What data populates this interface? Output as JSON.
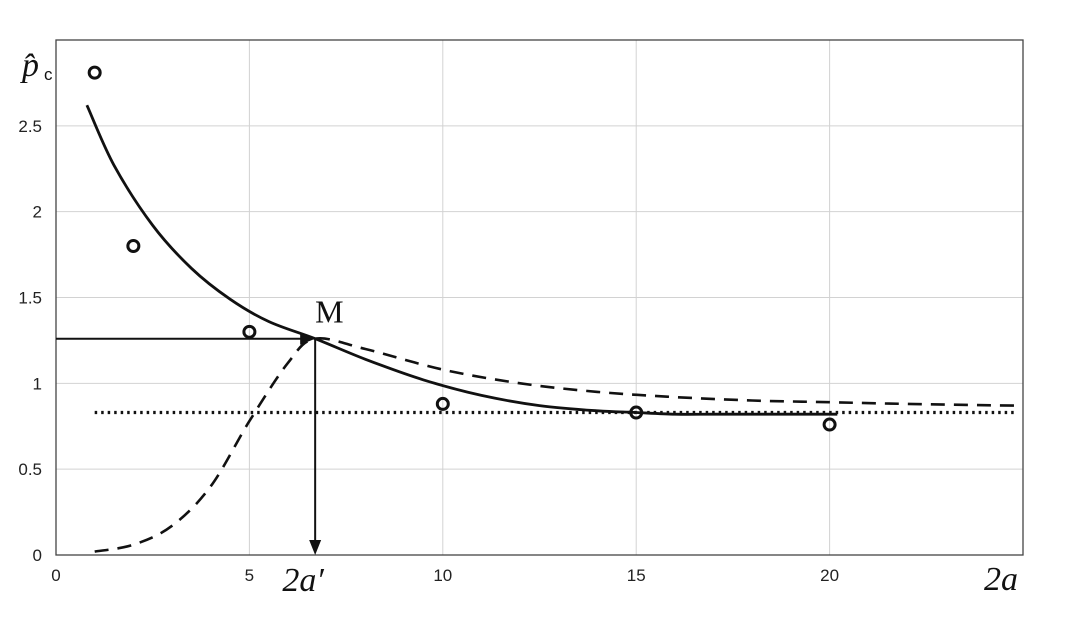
{
  "chart_data": {
    "type": "line",
    "title": "",
    "xlabel": "2a",
    "ylabel": "p̂",
    "ylabel_subscript": "c",
    "xlim": [
      0,
      25
    ],
    "ylim": [
      0,
      3
    ],
    "grid": true,
    "legend": "none",
    "xticks": [
      0,
      5,
      10,
      15,
      20
    ],
    "xtick_labels": [
      "0",
      "5",
      "10",
      "15",
      "20"
    ],
    "yticks": [
      0,
      0.5,
      1,
      1.5,
      2,
      2.5
    ],
    "ytick_labels": [
      "0",
      "0.5",
      "1",
      "1.5",
      "2",
      "2.5"
    ],
    "series": [
      {
        "style": "solid",
        "x": [
          0.8,
          1.5,
          2.5,
          3.5,
          4.5,
          5.5,
          6.7,
          8,
          9.5,
          11,
          12.5,
          14,
          15,
          16,
          17,
          18,
          19,
          20.2
        ],
        "y": [
          2.62,
          2.27,
          1.92,
          1.67,
          1.49,
          1.36,
          1.26,
          1.14,
          1.02,
          0.93,
          0.87,
          0.84,
          0.83,
          0.82,
          0.82,
          0.82,
          0.82,
          0.82
        ]
      },
      {
        "style": "dashed",
        "x": [
          1,
          2,
          3,
          4,
          5,
          6,
          6.7,
          8,
          10,
          12,
          14,
          16,
          18,
          20,
          22,
          24.8
        ],
        "y": [
          0.02,
          0.06,
          0.17,
          0.4,
          0.78,
          1.12,
          1.26,
          1.2,
          1.08,
          1.0,
          0.95,
          0.92,
          0.9,
          0.89,
          0.88,
          0.87
        ]
      },
      {
        "style": "dotted",
        "x": [
          1,
          24.8
        ],
        "y": [
          0.83,
          0.83
        ]
      },
      {
        "style": "markers",
        "x": [
          1,
          2,
          5,
          10,
          15,
          20
        ],
        "y": [
          2.81,
          1.8,
          1.3,
          0.88,
          0.83,
          0.76
        ]
      }
    ],
    "annotations": {
      "point_label": "M",
      "point": [
        6.7,
        1.26
      ],
      "x_marker_label": "2a′"
    }
  }
}
